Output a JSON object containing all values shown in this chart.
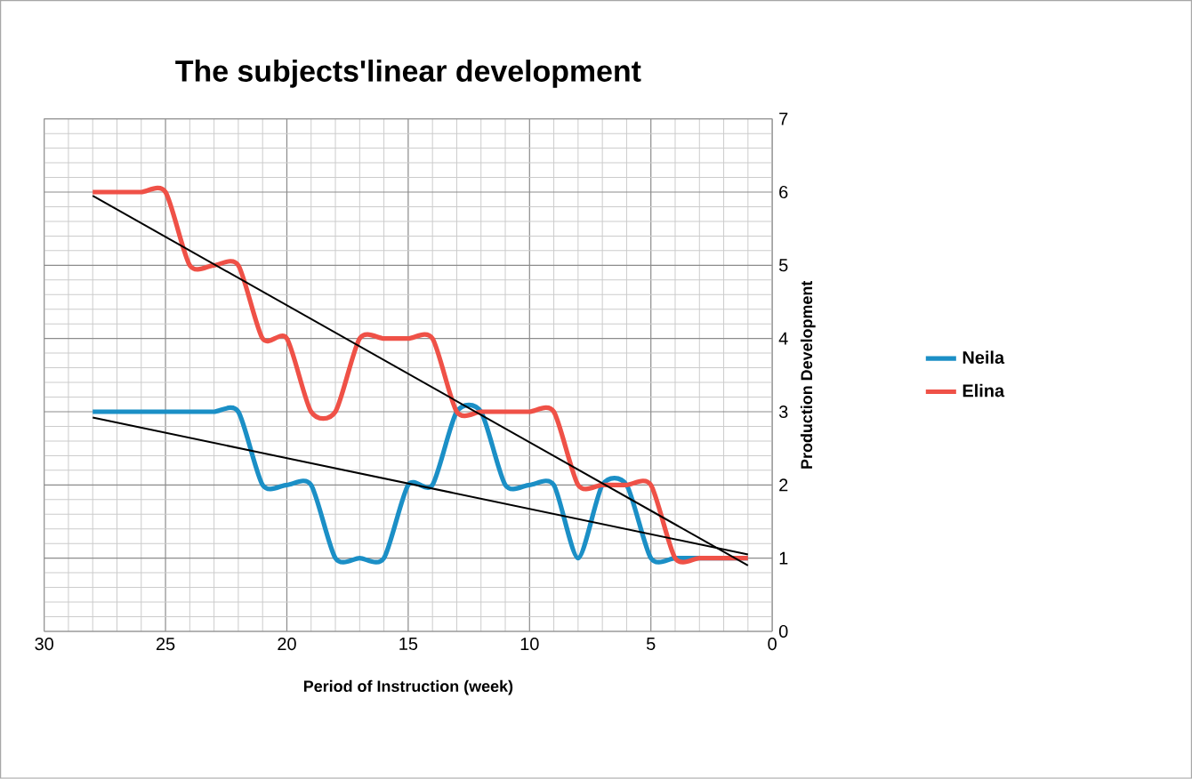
{
  "chart_data": {
    "type": "line",
    "title": "The subjects'linear development",
    "xlabel": "Period of Instruction (week)",
    "ylabel": "Production Development",
    "x": [
      28,
      27,
      26,
      25,
      24,
      23,
      22,
      21,
      20,
      19,
      18,
      17,
      16,
      15,
      14,
      13,
      12,
      11,
      10,
      9,
      8,
      7,
      6,
      5,
      4,
      3,
      2,
      1
    ],
    "series": [
      {
        "name": "Neila",
        "color": "#1b8fc6",
        "values": [
          3,
          3,
          3,
          3,
          3,
          3,
          3,
          2,
          2,
          2,
          1,
          1,
          1,
          2,
          2,
          3,
          3,
          2,
          2,
          2,
          1,
          2,
          2,
          1,
          1,
          1,
          1,
          1
        ]
      },
      {
        "name": "Elina",
        "color": "#ef5147",
        "values": [
          6,
          6,
          6,
          6,
          5,
          5,
          5,
          4,
          4,
          3,
          3,
          4,
          4,
          4,
          4,
          3,
          3,
          3,
          3,
          3,
          2,
          2,
          2,
          2,
          1,
          1,
          1,
          1
        ]
      },
      {
        "type": "line",
        "color": "#000000",
        "values": [
          2.92,
          null,
          null,
          null,
          null,
          null,
          null,
          null,
          null,
          null,
          null,
          null,
          null,
          null,
          null,
          null,
          null,
          null,
          null,
          null,
          null,
          null,
          null,
          null,
          null,
          null,
          null,
          1.05
        ]
      },
      {
        "type": "line",
        "color": "#000000",
        "values": [
          5.95,
          null,
          null,
          null,
          null,
          null,
          null,
          null,
          null,
          null,
          null,
          null,
          null,
          null,
          null,
          null,
          null,
          null,
          null,
          null,
          null,
          null,
          null,
          null,
          null,
          null,
          null,
          0.9
        ]
      }
    ],
    "xlim": [
      30,
      0
    ],
    "ylim": [
      0,
      7
    ],
    "xticks": [
      30,
      25,
      20,
      15,
      10,
      5,
      0
    ],
    "yticks": [
      0,
      1,
      2,
      3,
      4,
      5,
      6,
      7
    ],
    "grid": true,
    "legend": "right",
    "marker": "none",
    "line_style": "solid"
  }
}
